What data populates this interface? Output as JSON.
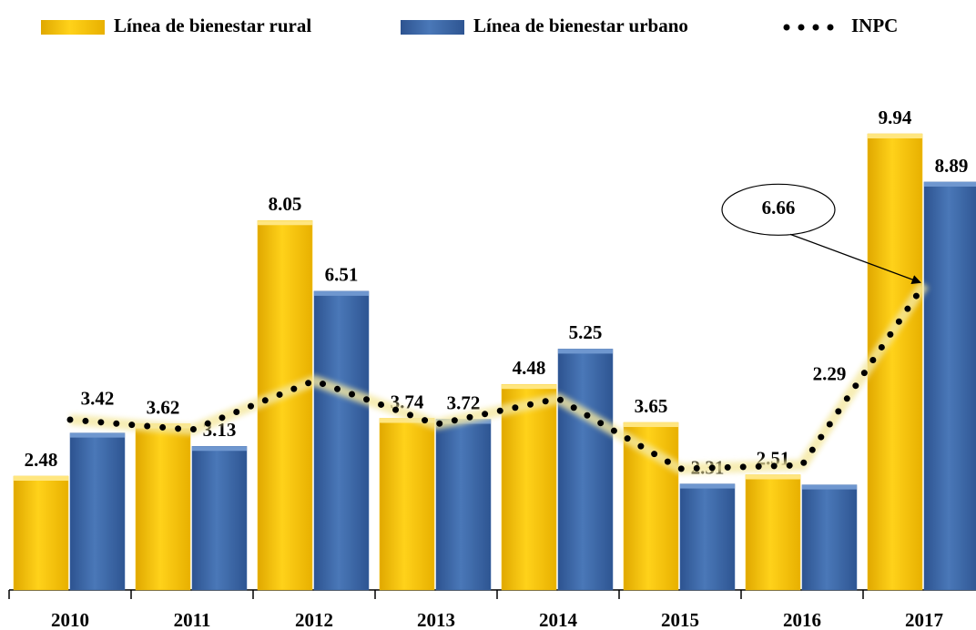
{
  "chart_data": {
    "type": "bar",
    "categories": [
      "2010",
      "2011",
      "2012",
      "2013",
      "2014",
      "2015",
      "2016",
      "2017"
    ],
    "series": [
      {
        "name": "Línea de bienestar rural",
        "color": "#f5c000",
        "values": [
          2.48,
          3.62,
          8.05,
          3.74,
          4.48,
          3.65,
          2.51,
          9.94
        ]
      },
      {
        "name": "Línea de bienestar urbano",
        "color": "#3b67a6",
        "values": [
          3.42,
          3.13,
          6.51,
          3.72,
          5.25,
          2.31,
          2.29,
          8.89
        ]
      },
      {
        "name": "INPC",
        "type": "line",
        "color": "#000000",
        "values": [
          3.71,
          3.49,
          4.56,
          3.61,
          4.17,
          2.64,
          2.72,
          6.66
        ]
      }
    ],
    "legend": "top"
  }
}
